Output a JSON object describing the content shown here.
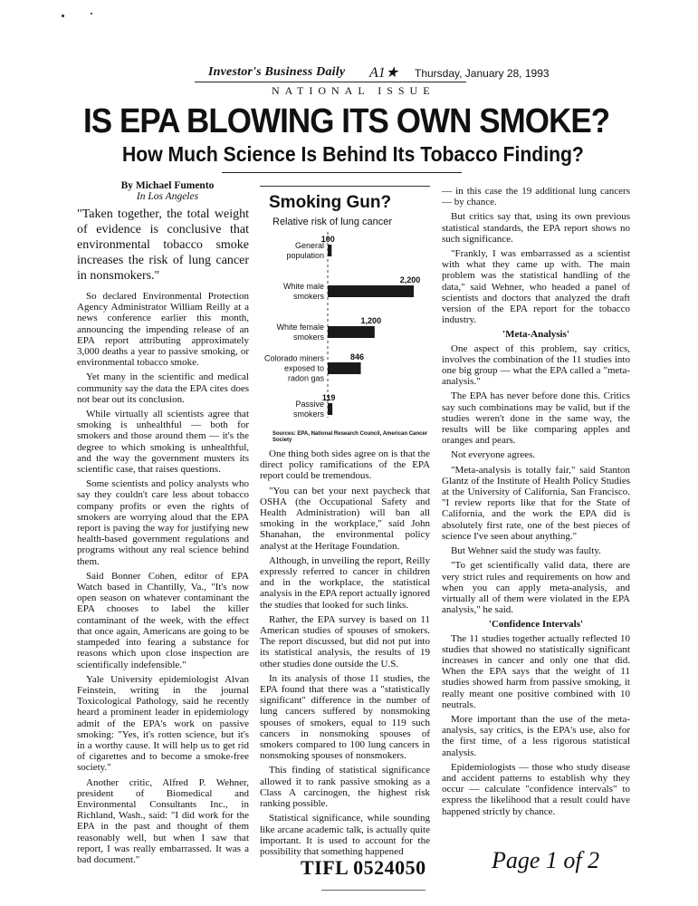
{
  "masthead": {
    "paper": "Investor's Business Daily",
    "logo_mark": "A1★",
    "date": "Thursday, January 28, 1993",
    "edition": "NATIONAL ISSUE"
  },
  "headline": "IS EPA BLOWING ITS OWN SMOKE?",
  "subheadline": "How Much Science Is Behind Its Tobacco Finding?",
  "byline": {
    "author": "By Michael Fumento",
    "location": "In Los Angeles"
  },
  "columns": {
    "col1": [
      "\"Taken together, the total weight of evidence is conclusive that environmental tobacco smoke increases the risk of lung cancer in nonsmokers.\"",
      "So declared Environmental Protection Agency Administrator William Reilly at a news conference earlier this month, announcing the impending release of an EPA report attributing approximately 3,000 deaths a year to passive smoking, or environmental tobacco smoke.",
      "Yet many in the scientific and medical community say the data the EPA cites does not bear out its conclusion.",
      "While virtually all scientists agree that smoking is unhealthful — both for smokers and those around them — it's the degree to which smoking is unhealthful, and the way the government musters its scientific case, that raises questions.",
      "Some scientists and policy analysts who say they couldn't care less about tobacco company profits or even the rights of smokers are worrying aloud that the EPA report is paving the way for justifying new health-based government regulations and programs without any real science behind them.",
      "Said Bonner Cohen, editor of EPA Watch based in Chantilly, Va., \"It's now open season on whatever contaminant the EPA chooses to label the killer contaminant of the week, with the effect that once again, Americans are going to be stampeded into fearing a substance for reasons which upon close inspection are scientifically indefensible.\"",
      "Yale University epidemiologist Alvan Feinstein, writing in the journal Toxicological Pathology, said he recently heard a prominent leader in epidemiology admit of the EPA's work on passive smoking: \"Yes, it's rotten science, but it's in a worthy cause. It will help us to get rid of cigarettes and to become a smoke-free society.\"",
      "Another critic, Alfred P. Wehner, president of Biomedical and Environmental Consultants Inc., in Richland, Wash., said: \"I did work for the EPA in the past and thought of them reasonably well, but when I saw that report, I was really embarrassed. It was a bad document.\""
    ],
    "col2": [
      "One thing both sides agree on is that the direct policy ramifications of the EPA report could be tremendous.",
      "\"You can bet your next paycheck that OSHA (the Occupational Safety and Health Administration) will ban all smoking in the workplace,\" said John Shanahan, the environmental policy analyst at the Heritage Foundation.",
      "Although, in unveiling the report, Reilly expressly referred to cancer in children and in the workplace, the statistical analysis in the EPA report actually ignored the studies that looked for such links.",
      "Rather, the EPA survey is based on 11 American studies of spouses of smokers. The report discussed, but did not put into its statistical analysis, the results of 19 other studies done outside the U.S.",
      "In its analysis of those 11 studies, the EPA found that there was a \"statistically significant\" difference in the number of lung cancers suffered by nonsmoking spouses of smokers, equal to 119 such cancers in nonsmoking spouses of smokers compared to 100 lung cancers in nonsmoking spouses of nonsmokers.",
      "This finding of statistical significance allowed it to rank passive smoking as a Class A carcinogen, the highest risk ranking possible.",
      "Statistical significance, while sounding like arcane academic talk, is actually quite important. It is used to account for the possibility that something happened"
    ],
    "col3_a": [
      "— in this case the 19 additional lung cancers — by chance.",
      "But critics say that, using its own previous statistical standards, the EPA report shows no such significance.",
      "\"Frankly, I was embarrassed as a scientist with what they came up with. The main problem was the statistical handling of the data,\" said Wehner, who headed a panel of scientists and doctors that analyzed the draft version of the EPA report for the tobacco industry."
    ],
    "subhead_meta": "'Meta-Analysis'",
    "col3_b": [
      "One aspect of this problem, say critics, involves the combination of the 11 studies into one big group — what the EPA called a \"meta-analysis.\"",
      "The EPA has never before done this. Critics say such combinations may be valid, but if the studies weren't done in the same way, the results will be like comparing apples and oranges and pears.",
      "Not everyone agrees.",
      "\"Meta-analysis is totally fair,\" said Stanton Glantz of the Institute of Health Policy Studies at the University of California, San Francisco. \"I review reports like that for the State of California, and the work the EPA did is absolutely first rate, one of the best pieces of science I've seen about anything.\"",
      "But Wehner said the study was faulty.",
      "\"To get scientifically valid data, there are very strict rules and requirements on how and when you can apply meta-analysis, and virtually all of them were violated in the EPA analysis,\" he said."
    ],
    "subhead_ci": "'Confidence Intervals'",
    "col3_c": [
      "The 11 studies together actually reflected 10 studies that showed no statistically significant increases in cancer and only one that did. When the EPA says that the weight of 11 studies showed harm from passive smoking, it really meant one positive combined with 10 neutrals.",
      "More important than the use of the meta-analysis, say critics, is the EPA's use, also for the first time, of a less rigorous statistical analysis.",
      "Epidemiologists — those who study disease and accident patterns to establish why they occur — calculate \"confidence intervals\" to express the likelihood that a result could have happened strictly by chance."
    ]
  },
  "chart_data": {
    "type": "bar",
    "title": "Smoking Gun?",
    "subtitle": "Relative risk of lung cancer",
    "categories": [
      "General population",
      "White male smokers",
      "White female smokers",
      "Colorado miners exposed to radon gas",
      "Passive smokers"
    ],
    "category_lines": [
      [
        "General",
        "population"
      ],
      [
        "White male",
        "smokers"
      ],
      [
        "White female",
        "smokers"
      ],
      [
        "Colorado miners",
        "exposed to",
        "radon gas"
      ],
      [
        "Passive",
        "smokers"
      ]
    ],
    "values": [
      100,
      2200,
      1200,
      846,
      119
    ],
    "value_labels": [
      "100",
      "2,200",
      "1,200",
      "846",
      "119"
    ],
    "source": "Sources: EPA, National Research Council, American Cancer Society"
  },
  "footer": {
    "bates_id": "TIFL 0524050",
    "handwritten": "Page 1 of 2"
  }
}
